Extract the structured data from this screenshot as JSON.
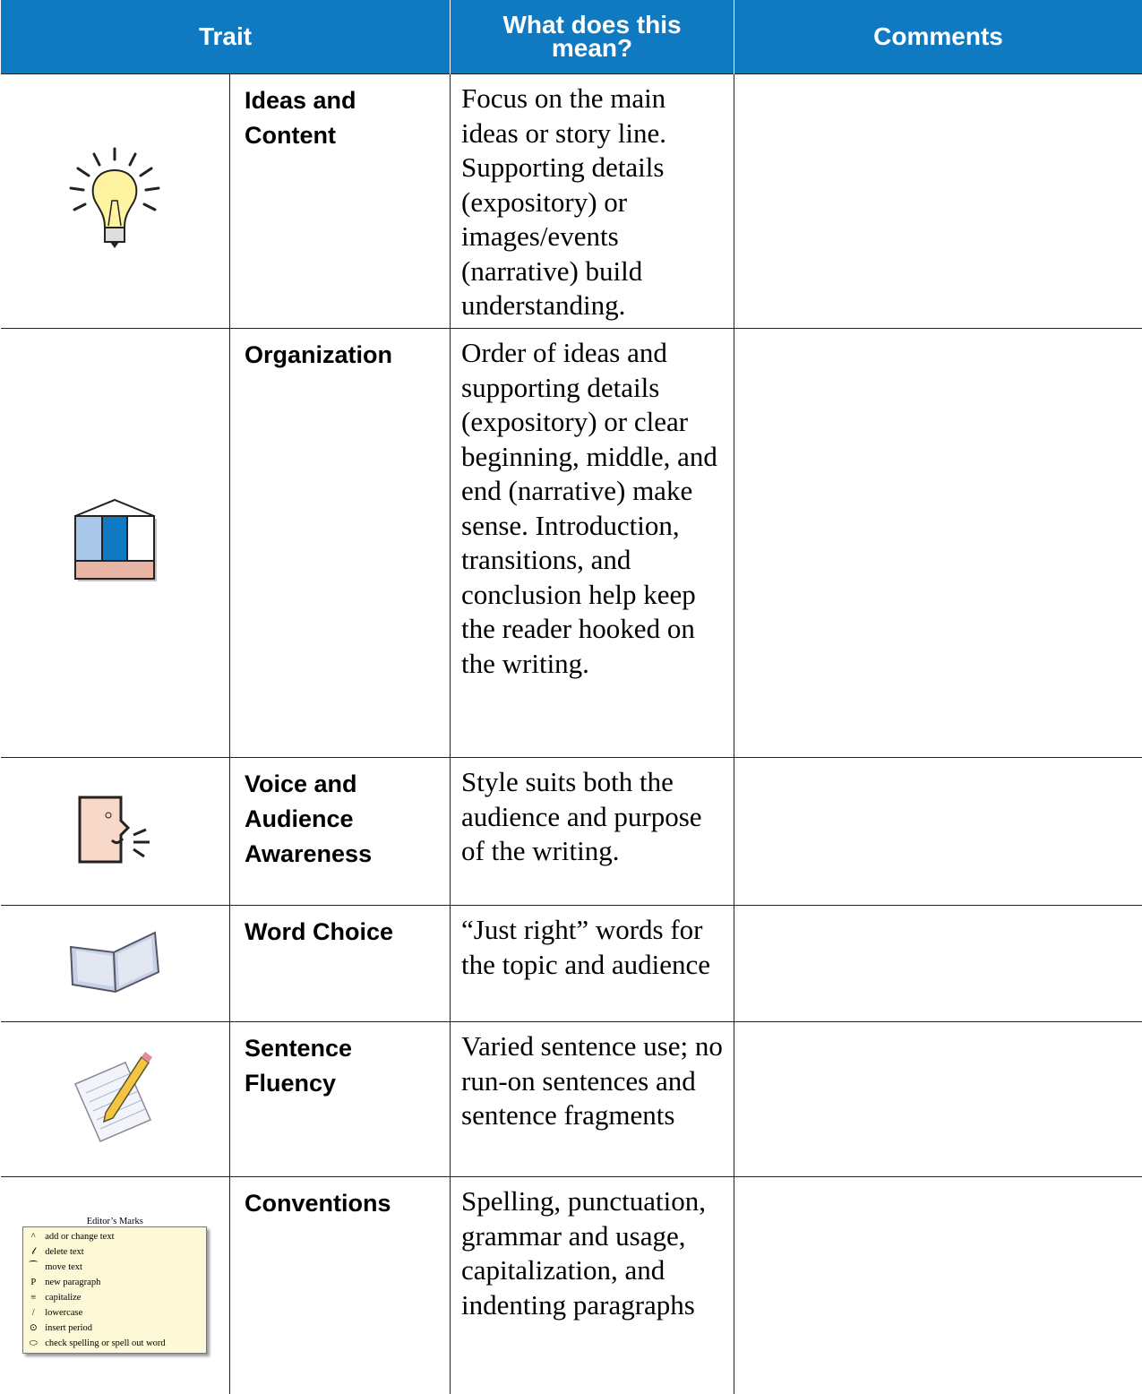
{
  "header": {
    "columns": [
      "Trait",
      "What does this mean?",
      "Comments"
    ]
  },
  "rows": [
    {
      "trait": "Ideas and Content",
      "meaning": "Focus on the main ideas or story line. Supporting details (expository) or images/events (narrative) build understanding.",
      "comments": ""
    },
    {
      "trait": "Organization",
      "meaning": "Order of ideas and supporting details (expository) or clear beginning, middle, and end (narrative) make sense. Introduction, transitions, and conclusion help keep the reader hooked on the writing.",
      "comments": ""
    },
    {
      "trait": "Voice and Audience Awareness",
      "meaning": "Style suits both the audience and purpose of the writing.",
      "comments": ""
    },
    {
      "trait": "Word Choice",
      "meaning": "“Just right” words for the topic and audience",
      "comments": ""
    },
    {
      "trait": "Sentence Fluency",
      "meaning": "Varied sentence use; no run-on sentences and sentence fragments",
      "comments": ""
    },
    {
      "trait": "Conventions",
      "meaning": "Spelling, punctuation, grammar and usage, capitalization, and indenting paragraphs",
      "comments": ""
    }
  ],
  "editors_marks": {
    "title": "Editor’s Marks",
    "items": [
      "add or change text",
      "delete text",
      "move text",
      "new paragraph",
      "capitalize",
      "lowercase",
      "insert period",
      "check spelling or spell out word"
    ]
  }
}
